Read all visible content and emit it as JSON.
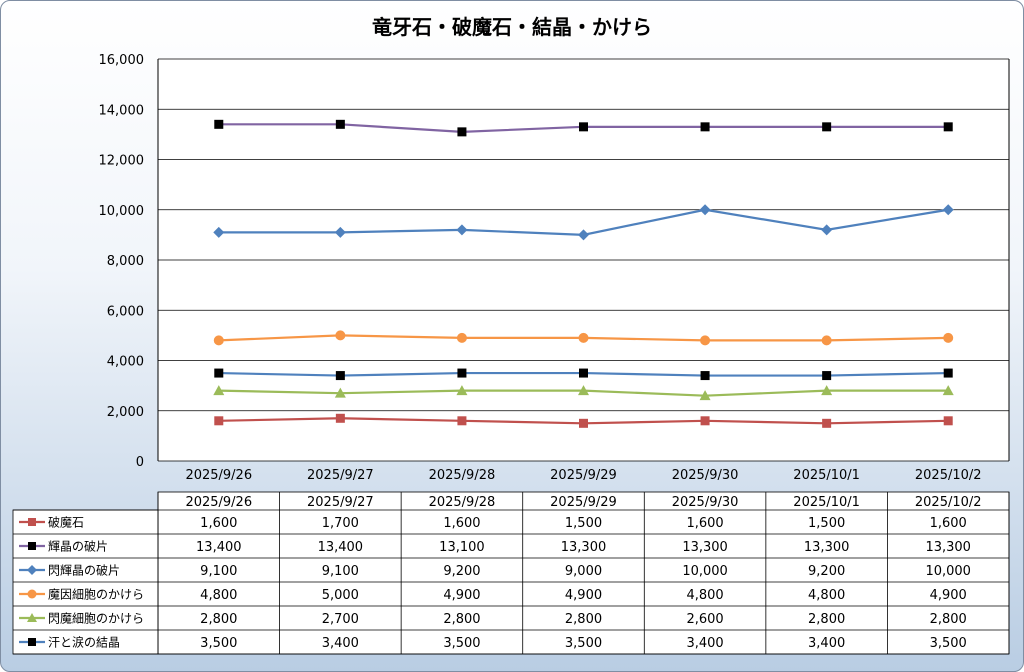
{
  "chart_data": {
    "type": "line",
    "title": "竜牙石・破魔石・結晶・かけら",
    "xlabel": "",
    "ylabel": "",
    "ylim": [
      0,
      16000
    ],
    "yticks": [
      0,
      2000,
      4000,
      6000,
      8000,
      10000,
      12000,
      14000,
      16000
    ],
    "ytick_labels": [
      "0",
      "2,000",
      "4,000",
      "6,000",
      "8,000",
      "10,000",
      "12,000",
      "14,000",
      "16,000"
    ],
    "grid": true,
    "legend_placement": "data table below chart",
    "categories": [
      "2025/9/26",
      "2025/9/27",
      "2025/9/28",
      "2025/9/29",
      "2025/9/30",
      "2025/10/1",
      "2025/10/2"
    ],
    "series": [
      {
        "name": "破魔石",
        "color": "#c0504d",
        "marker": "square",
        "values": [
          1600,
          1700,
          1600,
          1500,
          1600,
          1500,
          1600
        ],
        "labels": [
          "1,600",
          "1,700",
          "1,600",
          "1,500",
          "1,600",
          "1,500",
          "1,600"
        ]
      },
      {
        "name": "輝晶の破片",
        "color": "#8064a2",
        "marker_color": "#000000",
        "marker": "square",
        "values": [
          13400,
          13400,
          13100,
          13300,
          13300,
          13300,
          13300
        ],
        "labels": [
          "13,400",
          "13,400",
          "13,100",
          "13,300",
          "13,300",
          "13,300",
          "13,300"
        ]
      },
      {
        "name": "閃輝晶の破片",
        "color": "#4f81bd",
        "marker": "diamond",
        "values": [
          9100,
          9100,
          9200,
          9000,
          10000,
          9200,
          10000
        ],
        "labels": [
          "9,100",
          "9,100",
          "9,200",
          "9,000",
          "10,000",
          "9,200",
          "10,000"
        ]
      },
      {
        "name": "魔因細胞のかけら",
        "color": "#f79646",
        "marker": "circle",
        "values": [
          4800,
          5000,
          4900,
          4900,
          4800,
          4800,
          4900
        ],
        "labels": [
          "4,800",
          "5,000",
          "4,900",
          "4,900",
          "4,800",
          "4,800",
          "4,900"
        ]
      },
      {
        "name": "閃魔細胞のかけら",
        "color": "#9bbb59",
        "marker": "triangle",
        "values": [
          2800,
          2700,
          2800,
          2800,
          2600,
          2800,
          2800
        ],
        "labels": [
          "2,800",
          "2,700",
          "2,800",
          "2,800",
          "2,600",
          "2,800",
          "2,800"
        ]
      },
      {
        "name": "汗と涙の結晶",
        "color": "#4f81bd",
        "marker_color": "#000000",
        "marker": "square",
        "values": [
          3500,
          3400,
          3500,
          3500,
          3400,
          3400,
          3500
        ],
        "labels": [
          "3,500",
          "3,400",
          "3,500",
          "3,500",
          "3,400",
          "3,400",
          "3,500"
        ]
      }
    ]
  }
}
